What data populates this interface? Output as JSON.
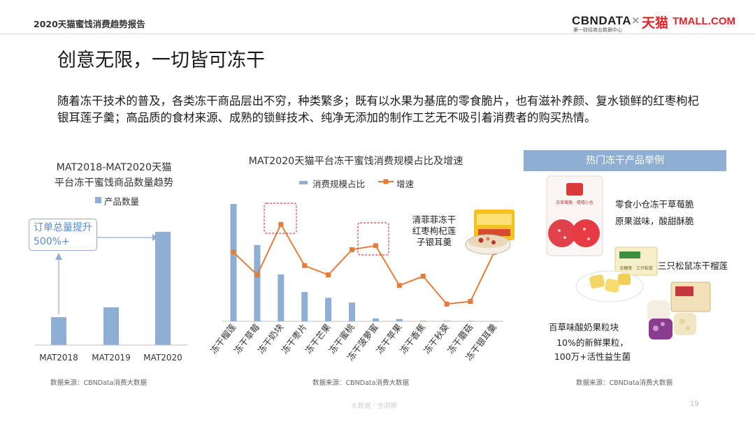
{
  "header": {
    "report_title": "2020天猫蜜饯消费趋势报告",
    "cbn_logo": "CBNDATA",
    "cbn_subtitle": "第一财经商业数据中心",
    "logo_separator": "×",
    "tmall_logo_cn": "天猫",
    "tmall_logo_en": "TMALL.COM"
  },
  "headline": "创意无限，一切皆可冻干",
  "intro": "随着冻干技术的普及，各类冻干商品层出不穷，种类繁多；既有以水果为基底的零食脆片，也有滋补养颜、复水锁鲜的红枣枸杞银耳莲子羹；高品质的食材来源、成熟的锁鲜技术、纯净无添加的制作工艺无不吸引着消费者的购买热情。",
  "left_chart": {
    "title_line1": "MAT2018-MAT2020天猫",
    "title_line2": "平台冻干蜜饯商品数量趋势",
    "legend": "产品数量",
    "callout": "订单总量提升500%+",
    "source": "数据来源：CBNData消费大数据"
  },
  "middle_chart": {
    "title": "MAT2020天猫平台冻干蜜饯消费规模占比及增速",
    "legend_bar": "消费规模占比",
    "legend_line": "增速",
    "product_callout": "清菲菲冻干红枣枸杞莲子银耳羹",
    "source": "数据来源：CBNData消费大数据"
  },
  "right_panel": {
    "banner": "热门冻干产品举例",
    "products": [
      {
        "label": "零食小仓冻干草莓脆",
        "detail": "原果滋味，酸甜酥脆",
        "package_text": "冻草莓脆 · 嘻嘻小仓"
      },
      {
        "label": "三只松鼠冻干榴莲",
        "package_text": "冻榴莲 · 三只松鼠"
      },
      {
        "label": "百草味酸奶果粒块",
        "detail": "10%的新鲜果粒，100万+活性益生菌"
      }
    ],
    "source": "数据来源：CBNData消费大数据"
  },
  "footer": {
    "watermark": "大数据 · 全洞察",
    "page_number": "19"
  },
  "colors": {
    "bar": "#8eaed3",
    "line": "#e27d3c",
    "highlight_box": "#d94444",
    "tmall_red": "#e0252b",
    "callout_border": "#8eaed3"
  },
  "chart_data": [
    {
      "type": "bar",
      "categories": [
        "MAT2018",
        "MAT2019",
        "MAT2020"
      ],
      "series": [
        {
          "name": "产品数量",
          "values": [
            17,
            23,
            69
          ]
        }
      ],
      "ylim": [
        0,
        100
      ],
      "grid": false,
      "legend": "top",
      "annotations": [
        "订单总量提升500%+"
      ]
    },
    {
      "type": "bar",
      "categories": [
        "冻干榴莲",
        "冻干草莓",
        "冻干奶块",
        "冻干枣片",
        "冻干芒果",
        "冻干蜜桃",
        "冻干菠萝蜜",
        "冻干苹果",
        "冻干香蕉",
        "冻干秋葵",
        "冻干蘑菇",
        "冻干银耳羹"
      ],
      "series": [
        {
          "name": "消费规模占比",
          "type": "bar",
          "values": [
            100,
            65,
            40,
            25,
            20,
            16,
            2.5,
            2,
            0.5,
            0.5,
            0.4,
            0.3
          ]
        },
        {
          "name": "增速",
          "type": "line",
          "values": [
            52,
            35,
            73,
            42,
            35,
            54,
            57,
            27,
            34,
            13,
            15,
            52
          ]
        }
      ],
      "ylim": [
        0,
        100
      ],
      "grid": false,
      "legend": "top",
      "annotations": [
        "清菲菲冻干红枣枸杞莲子银耳羹"
      ]
    }
  ]
}
